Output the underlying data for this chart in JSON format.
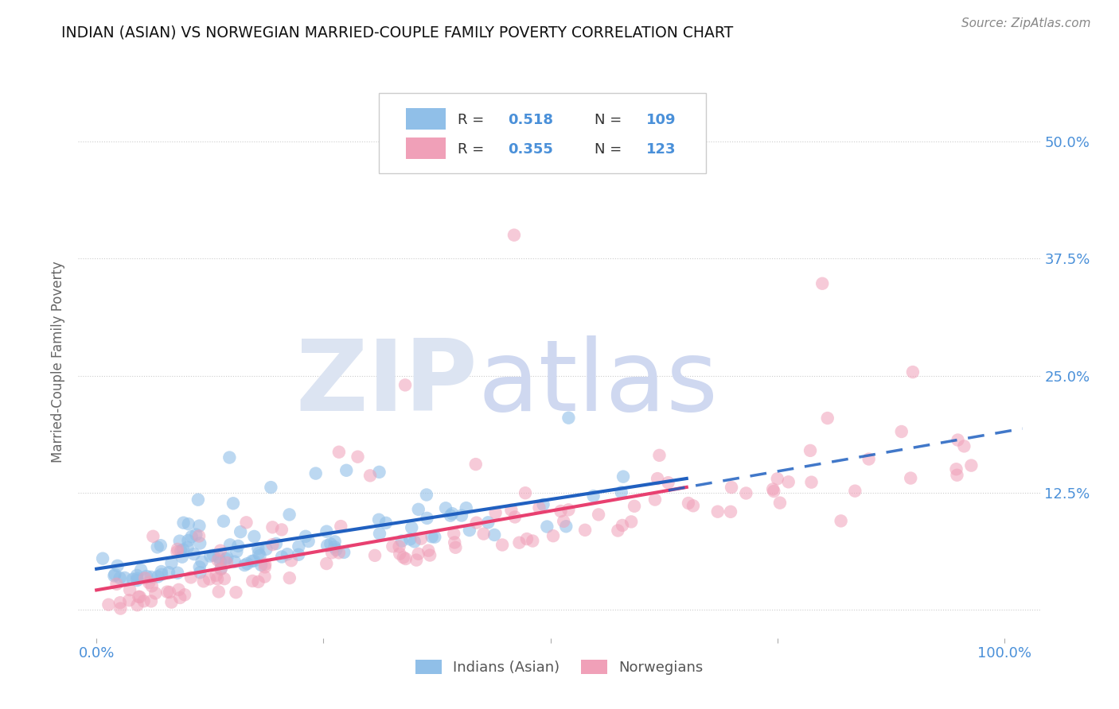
{
  "title": "INDIAN (ASIAN) VS NORWEGIAN MARRIED-COUPLE FAMILY POVERTY CORRELATION CHART",
  "source": "Source: ZipAtlas.com",
  "ylabel": "Married-Couple Family Poverty",
  "blue_color": "#90bfe8",
  "pink_color": "#f0a0b8",
  "blue_line_color": "#2060c0",
  "pink_line_color": "#e84070",
  "title_color": "#111111",
  "axis_label_color": "#4a90d9",
  "background_color": "#ffffff",
  "grid_color": "#cccccc",
  "legend_box_edge": "#cccccc",
  "watermark_zip_color": "#dde4f0",
  "watermark_atlas_color": "#d0d8ec",
  "source_color": "#888888",
  "ytick_color": "#4a90d9",
  "xtick_color": "#4a90d9",
  "ylabel_color": "#666666",
  "blue_r": "0.518",
  "blue_n": "109",
  "pink_r": "0.355",
  "pink_n": "123",
  "r_label_color": "#333333",
  "n_value_color_blue": "#4a90d9",
  "n_value_color_pink": "#e84070"
}
